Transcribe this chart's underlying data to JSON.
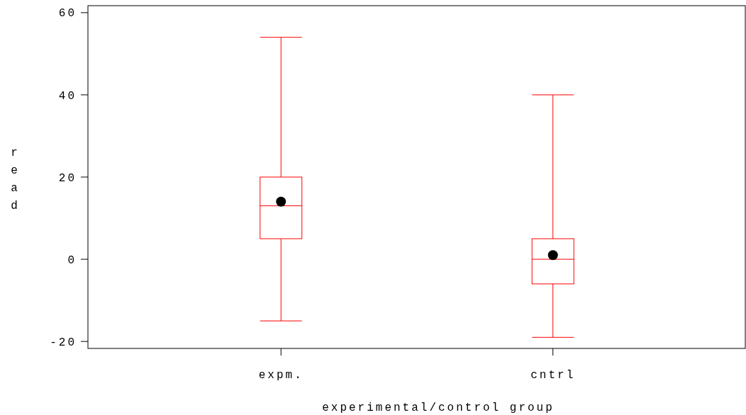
{
  "chart_data": {
    "type": "box",
    "xlabel": "experimental/control group",
    "ylabel": "read",
    "categories": [
      "expm.",
      "cntrl"
    ],
    "ylim": [
      -21.7,
      61.7
    ],
    "yticks": [
      -20,
      0,
      20,
      40,
      60
    ],
    "grid": false,
    "series": [
      {
        "color": "#ff0000",
        "boxes": [
          {
            "low": -15,
            "q1": 5,
            "median": 13,
            "q3": 20,
            "high": 54,
            "mean": 14
          },
          {
            "low": -19,
            "q1": -6,
            "median": 0,
            "q3": 5,
            "high": 40,
            "mean": 1
          }
        ]
      }
    ]
  }
}
